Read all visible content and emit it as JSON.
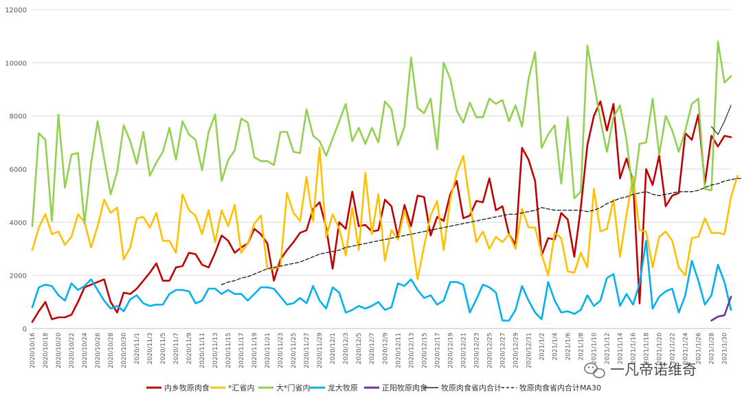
{
  "chart_data": {
    "type": "line",
    "title": "",
    "xlabel": "",
    "ylabel": "",
    "ylim": [
      0,
      12000
    ],
    "yticks": [
      0,
      2000,
      4000,
      6000,
      8000,
      10000,
      12000
    ],
    "ytick_labels": [
      "0",
      "2000",
      "4000",
      "6000",
      "8000",
      "10000",
      "12000"
    ],
    "grid": "horizontal",
    "legend_position": "bottom",
    "x_range": [
      "2020-10-16",
      "2021-01-31"
    ],
    "xtick_labels": [
      "2020/10/16",
      "2020/10/18",
      "2020/10/20",
      "2020/10/22",
      "2020/10/24",
      "2020/10/26",
      "2020/10/28",
      "2020/10/30",
      "2020/11/1",
      "2020/11/3",
      "2020/11/5",
      "2020/11/7",
      "2020/11/9",
      "2020/11/11",
      "2020/11/13",
      "2020/11/15",
      "2020/11/17",
      "2020/11/19",
      "2020/11/21",
      "2020/11/23",
      "2020/11/25",
      "2020/11/27",
      "2020/11/29",
      "2020/12/1",
      "2020/12/3",
      "2020/12/5",
      "2020/12/7",
      "2020/12/9",
      "2020/12/11",
      "2020/12/13",
      "2020/12/15",
      "2020/12/17",
      "2020/12/19",
      "2020/12/21",
      "2020/12/23",
      "2020/12/25",
      "2020/12/27",
      "2020/12/29",
      "2020/12/31",
      "2021/1/2",
      "2021/1/4",
      "2021/1/6",
      "2021/1/8",
      "2021/1/10",
      "2021/1/12",
      "2021/1/14",
      "2021/1/16",
      "2021/1/18",
      "2021/1/20",
      "2021/1/22",
      "2021/1/24",
      "2021/1/26",
      "2021/1/28",
      "2021/1/30"
    ],
    "series": [
      {
        "name": "内乡牧原肉食",
        "color": "#c00000",
        "dash": "solid",
        "width": 2.6,
        "start": 0,
        "values": [
          250,
          650,
          1000,
          350,
          420,
          420,
          520,
          1000,
          1550,
          1650,
          1750,
          1850,
          1000,
          600,
          1350,
          1300,
          1500,
          1800,
          2100,
          2450,
          1800,
          1800,
          2300,
          2350,
          2850,
          2800,
          2400,
          2300,
          2850,
          3500,
          3300,
          2850,
          3050,
          3200,
          3750,
          3550,
          3200,
          1800,
          2600,
          2950,
          3250,
          3600,
          3700,
          4500,
          4750,
          3800,
          2250,
          4000,
          3750,
          5150,
          3850,
          3900,
          3650,
          3700,
          4850,
          4600,
          3450,
          4650,
          3850,
          5000,
          4950,
          3500,
          4200,
          4050,
          5050,
          5550,
          4150,
          4250,
          4800,
          4750,
          5650,
          4450,
          4600,
          3550,
          3150,
          6800,
          6350,
          5550,
          2750,
          3400,
          3350,
          4350,
          4100,
          2700,
          4550,
          6900,
          8000,
          8550,
          7450,
          8450,
          5650,
          6400,
          5550,
          950,
          6000,
          5400,
          6500,
          4600,
          5000,
          5100,
          7350,
          7100,
          8050,
          5450,
          7250,
          6850,
          7250,
          7200
        ]
      },
      {
        "name": "*汇省内",
        "color": "#ffc000",
        "dash": "solid",
        "width": 2.6,
        "start": 0,
        "values": [
          2950,
          3800,
          4300,
          3550,
          3650,
          3150,
          3450,
          4300,
          4000,
          3050,
          3850,
          4850,
          4350,
          4550,
          2600,
          3050,
          4150,
          4200,
          3800,
          4350,
          3300,
          3300,
          2850,
          5050,
          4450,
          4250,
          3550,
          4450,
          3250,
          4450,
          3850,
          4650,
          2850,
          3200,
          3950,
          4250,
          2250,
          2250,
          2350,
          5100,
          4350,
          4050,
          5700,
          4050,
          6800,
          3450,
          4300,
          3750,
          2750,
          4550,
          2950,
          5850,
          3550,
          5050,
          2550,
          3700,
          3350,
          4450,
          3550,
          1850,
          3100,
          4250,
          4800,
          2950,
          4850,
          5850,
          6500,
          4750,
          3250,
          3650,
          3000,
          3450,
          3250,
          3550,
          3000,
          4500,
          3800,
          3800,
          2800,
          2000,
          3600,
          3400,
          2150,
          2100,
          2850,
          2300,
          5250,
          3650,
          3750,
          4850,
          2700,
          4300,
          5700,
          3700,
          3650,
          2300,
          3450,
          3650,
          3300,
          2300,
          2000,
          3400,
          3450,
          4150,
          3600,
          3600,
          3550,
          4950,
          5750
        ]
      },
      {
        "name": "大*门省内",
        "color": "#92d050",
        "dash": "solid",
        "width": 2.6,
        "start": 0,
        "values": [
          3850,
          7350,
          7100,
          4050,
          8050,
          5300,
          6550,
          6600,
          3950,
          6200,
          7800,
          6400,
          5050,
          5900,
          7650,
          7050,
          6200,
          7400,
          5750,
          6250,
          6650,
          7550,
          6350,
          7800,
          7300,
          7100,
          5950,
          7400,
          8050,
          5550,
          6350,
          6700,
          7900,
          7750,
          6450,
          6300,
          6300,
          6150,
          7400,
          7400,
          6650,
          6600,
          8250,
          7250,
          7050,
          6500,
          7150,
          7800,
          8450,
          7050,
          7550,
          6950,
          7550,
          7000,
          8550,
          8250,
          6900,
          7600,
          10200,
          8300,
          8100,
          8650,
          6750,
          10000,
          9400,
          8200,
          7750,
          8500,
          7950,
          7950,
          8650,
          8450,
          8600,
          7800,
          8400,
          7600,
          9400,
          10400,
          6800,
          7300,
          7650,
          5450,
          7950,
          4900,
          5150,
          10650,
          9250,
          7850,
          6650,
          7950,
          8400,
          7100,
          5050,
          6950,
          7000,
          8650,
          6550,
          8000,
          7450,
          6650,
          7450,
          8450,
          8650,
          5250,
          5200,
          10800,
          9250,
          9500
        ]
      },
      {
        "name": "龙大牧原",
        "color": "#00b0f0",
        "dash": "solid",
        "width": 2.6,
        "start": 0,
        "values": [
          800,
          1550,
          1650,
          1600,
          1250,
          1050,
          1700,
          1450,
          1600,
          1850,
          1450,
          1050,
          750,
          850,
          650,
          1100,
          1250,
          950,
          850,
          900,
          900,
          1300,
          1450,
          1450,
          1400,
          950,
          1050,
          1500,
          1500,
          1300,
          1450,
          1300,
          1300,
          1050,
          1300,
          1550,
          1550,
          1500,
          1200,
          900,
          950,
          1150,
          950,
          1600,
          1050,
          750,
          1550,
          1350,
          600,
          700,
          850,
          750,
          850,
          1000,
          700,
          800,
          1700,
          1600,
          1850,
          1450,
          1150,
          1250,
          900,
          1050,
          1750,
          1750,
          1650,
          600,
          1100,
          1650,
          1550,
          1350,
          300,
          300,
          700,
          1600,
          1050,
          600,
          350,
          1750,
          1050,
          600,
          650,
          550,
          700,
          1250,
          850,
          1050,
          1900,
          2050,
          850,
          1300,
          900,
          1700,
          3300,
          750,
          1200,
          1400,
          1500,
          600,
          1250,
          2550,
          1800,
          900,
          1250,
          2400,
          1750,
          700
        ]
      },
      {
        "name": "正阳牧原肉食",
        "color": "#7030a0",
        "dash": "solid",
        "width": 2.6,
        "start": 104,
        "values": [
          300,
          450,
          500,
          1200
        ]
      },
      {
        "name": "牧原肉食省内合计",
        "color": "#262626",
        "dash": "solid",
        "width": 1.2,
        "start": 104,
        "values": [
          7600,
          7300,
          7800,
          8400
        ]
      },
      {
        "name": "牧原肉食省内合计MA30",
        "color": "#262626",
        "dash": "5,3",
        "width": 1.4,
        "start": 29,
        "values": [
          1650,
          1750,
          1800,
          1900,
          1950,
          2050,
          2150,
          2250,
          2300,
          2350,
          2400,
          2450,
          2500,
          2600,
          2700,
          2800,
          2850,
          2900,
          2950,
          3050,
          3100,
          3150,
          3200,
          3250,
          3300,
          3350,
          3400,
          3450,
          3500,
          3550,
          3600,
          3650,
          3700,
          3750,
          3800,
          3850,
          3900,
          3950,
          4000,
          4050,
          4100,
          4150,
          4200,
          4250,
          4300,
          4300,
          4350,
          4400,
          4450,
          4550,
          4500,
          4450,
          4450,
          4450,
          4450,
          4450,
          4400,
          4450,
          4550,
          4700,
          4800,
          4900,
          4950,
          5050,
          5100,
          5150,
          5050,
          5000,
          5050,
          5100,
          5150,
          5150,
          5150,
          5200,
          5300,
          5400,
          5450,
          5550,
          5600,
          5650,
          5650,
          5700
        ]
      }
    ]
  },
  "watermark": {
    "text": "一凡帝诺维奇"
  }
}
